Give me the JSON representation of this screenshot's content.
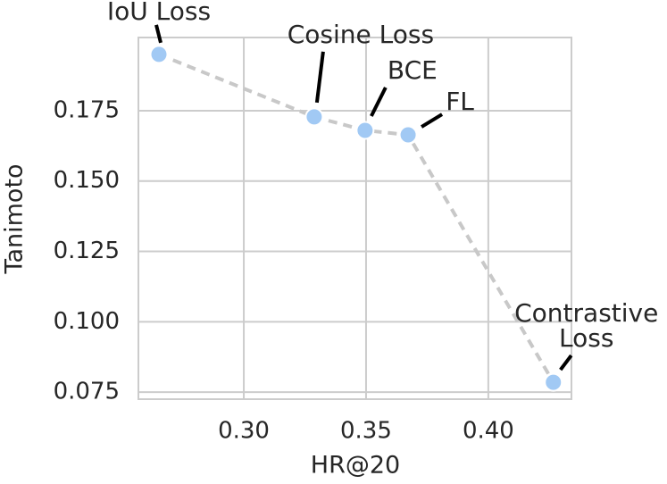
{
  "chart_data": {
    "type": "scatter",
    "x_label": "HR@20",
    "y_label": "Tanimoto",
    "x": [
      0.2653,
      0.3288,
      0.3496,
      0.3672,
      0.4266
    ],
    "values": [
      0.195,
      0.1728,
      0.168,
      0.1664,
      0.0785
    ],
    "labels": [
      [
        "IoU Loss"
      ],
      [
        "Cosine Loss"
      ],
      [
        "BCE"
      ],
      [
        "FL"
      ],
      [
        "Contrastive",
        "Loss"
      ]
    ],
    "color": "#a1c9f4",
    "line_color": "#c8c8c8",
    "line_style": "dashed",
    "xlim": [
      0.2569,
      0.434
    ],
    "ylim": [
      0.0725,
      0.201
    ],
    "xticks": [
      {
        "value": 0.3,
        "label": "0.30"
      },
      0.35,
      {
        "value": 0.4,
        "label": "0.40"
      }
    ],
    "yticks": [
      0.075,
      {
        "value": 0.1,
        "label": "0.100"
      },
      0.125,
      {
        "value": 0.15,
        "label": "0.150"
      },
      0.175
    ],
    "grid": true
  }
}
